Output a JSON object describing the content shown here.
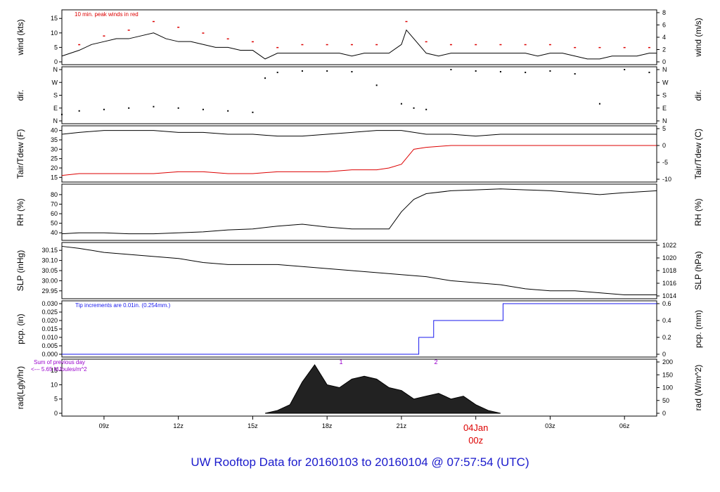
{
  "title": "UW Rooftop Data for 20160103  to  20160104 @ 07:57:54  (UTC)",
  "colors": {
    "black": "#000000",
    "red": "#dd0000",
    "blue": "#1a1aee",
    "purple": "#9900cc"
  },
  "chart_data": [
    {
      "type": "line",
      "panel": "wind",
      "ylabel": "wind (kts)",
      "ylabel_right": "wind (m/s)",
      "ylim": [
        0,
        17
      ],
      "yticks": [
        0,
        5,
        10,
        15
      ],
      "right_ylim": [
        0,
        8.75
      ],
      "right_yticks": [
        0,
        2,
        4,
        6,
        8
      ],
      "annotation": "10 min. peak winds in red",
      "series": [
        {
          "name": "wind",
          "color": "#000000",
          "x": [
            7.3,
            8,
            8.5,
            9,
            9.5,
            10,
            10.5,
            11,
            11.5,
            12,
            12.5,
            13,
            13.5,
            14,
            14.5,
            15,
            15.5,
            16,
            16.5,
            17,
            17.5,
            18,
            18.5,
            19,
            19.5,
            20,
            20.5,
            21,
            21.2,
            21.5,
            22,
            22.5,
            23,
            23.5,
            24,
            24.5,
            25,
            25.5,
            26,
            26.5,
            27,
            27.5,
            28,
            28.5,
            29,
            29.5,
            30,
            30.5,
            31,
            31.3
          ],
          "y": [
            2,
            4,
            6,
            7,
            8,
            8,
            9,
            10,
            8,
            7,
            7,
            6,
            5,
            5,
            4,
            4,
            1,
            3,
            3,
            3,
            3,
            3,
            3,
            2,
            3,
            3,
            3,
            6,
            11,
            8,
            3,
            2,
            3,
            3,
            3,
            3,
            3,
            3,
            3,
            2,
            3,
            3,
            2,
            1,
            1,
            2,
            2,
            2,
            3,
            3
          ]
        },
        {
          "name": "10 min. peak winds in red",
          "color": "#dd0000",
          "x": [
            8,
            9,
            10,
            11,
            12,
            13,
            14,
            15,
            16,
            17,
            18,
            19,
            20,
            21.2,
            22,
            23,
            24,
            25,
            26,
            27,
            28,
            29,
            30,
            31
          ],
          "y": [
            6,
            9,
            11,
            14,
            12,
            10,
            8,
            7,
            5,
            6,
            6,
            6,
            6,
            14,
            7,
            6,
            6,
            6,
            6,
            6,
            5,
            5,
            5,
            5
          ]
        }
      ]
    },
    {
      "type": "scatter",
      "panel": "dir",
      "ylabel": "dir.",
      "ylabel_right": "dir.",
      "yticks": [
        "N",
        "E",
        "S",
        "W",
        "N"
      ],
      "series": [
        {
          "name": "dir",
          "color": "#000000",
          "x": [
            7.3,
            8,
            9,
            10,
            11,
            12,
            13,
            14,
            15,
            15.5,
            16,
            17,
            18,
            19,
            20,
            21,
            21.5,
            22,
            23,
            24,
            25,
            26,
            27,
            28,
            29,
            30,
            31
          ],
          "y": [
            45,
            70,
            80,
            90,
            100,
            90,
            80,
            70,
            60,
            300,
            340,
            350,
            350,
            345,
            250,
            120,
            90,
            80,
            360,
            350,
            345,
            340,
            350,
            330,
            120,
            360,
            340
          ]
        }
      ]
    },
    {
      "type": "line",
      "panel": "temperature",
      "ylabel": "Tair/Tdew (F)",
      "ylabel_right": "Tair/Tdew (C)",
      "ylim": [
        14,
        41
      ],
      "yticks": [
        15,
        20,
        25,
        30,
        35,
        40
      ],
      "right_yticks": [
        -10,
        -5,
        0,
        5
      ],
      "series": [
        {
          "name": "Tair",
          "color": "#000000",
          "x": [
            7.3,
            8,
            9,
            10,
            11,
            12,
            13,
            14,
            15,
            16,
            17,
            18,
            19,
            20,
            20.5,
            21,
            22,
            23,
            24,
            25,
            26,
            27,
            28,
            29,
            30,
            31.3
          ],
          "y": [
            38,
            39,
            40,
            40,
            40,
            39,
            39,
            38,
            38,
            37,
            37,
            38,
            39,
            40,
            40,
            40,
            38,
            38,
            37,
            38,
            38,
            38,
            38,
            38,
            38,
            38
          ]
        },
        {
          "name": "Tdew",
          "color": "#dd0000",
          "x": [
            7.3,
            8,
            9,
            10,
            11,
            12,
            13,
            14,
            15,
            16,
            17,
            18,
            19,
            20,
            20.5,
            21,
            21.5,
            22,
            23,
            24,
            25,
            26,
            27,
            28,
            29,
            30,
            31.3
          ],
          "y": [
            16,
            17,
            17,
            17,
            17,
            18,
            18,
            17,
            17,
            18,
            18,
            18,
            19,
            19,
            20,
            22,
            30,
            31,
            32,
            32,
            32,
            32,
            32,
            32,
            32,
            32,
            32
          ]
        }
      ]
    },
    {
      "type": "line",
      "panel": "rh",
      "ylabel": "RH (%)",
      "ylabel_right": "RH (%)",
      "ylim": [
        35,
        88
      ],
      "yticks": [
        40,
        50,
        60,
        70,
        80
      ],
      "series": [
        {
          "name": "RH",
          "color": "#000000",
          "x": [
            7.3,
            8,
            9,
            10,
            11,
            12,
            13,
            14,
            15,
            16,
            17,
            18,
            19,
            20,
            20.5,
            21,
            21.5,
            22,
            23,
            24,
            25,
            26,
            27,
            28,
            29,
            30,
            31.3
          ],
          "y": [
            39,
            40,
            40,
            39,
            39,
            40,
            41,
            43,
            44,
            47,
            49,
            46,
            44,
            44,
            44,
            62,
            75,
            81,
            84,
            85,
            86,
            85,
            84,
            82,
            80,
            82,
            84
          ]
        }
      ]
    },
    {
      "type": "line",
      "panel": "slp",
      "ylabel": "SLP (inHg)",
      "ylabel_right": "SLP (hPa)",
      "ylim": [
        29.925,
        30.175
      ],
      "yticks": [
        29.95,
        30.0,
        30.05,
        30.1,
        30.15
      ],
      "right_yticks": [
        1014,
        1016,
        1018,
        1020,
        1022
      ],
      "series": [
        {
          "name": "SLP",
          "color": "#000000",
          "x": [
            7.3,
            8,
            9,
            10,
            11,
            12,
            13,
            14,
            15,
            16,
            17,
            18,
            19,
            20,
            21,
            22,
            23,
            24,
            25,
            26,
            27,
            28,
            29,
            30,
            31.3
          ],
          "y": [
            30.17,
            30.16,
            30.14,
            30.13,
            30.12,
            30.11,
            30.09,
            30.08,
            30.08,
            30.08,
            30.07,
            30.06,
            30.05,
            30.04,
            30.03,
            30.02,
            30.0,
            29.99,
            29.98,
            29.96,
            29.95,
            29.95,
            29.94,
            29.93,
            29.93
          ]
        }
      ]
    },
    {
      "type": "line",
      "panel": "pcp",
      "ylabel": "pcp. (in)",
      "ylabel_right": "pcp. (mm)",
      "ylim": [
        0,
        0.03
      ],
      "yticks": [
        0.0,
        0.005,
        0.01,
        0.015,
        0.02,
        0.025,
        0.03
      ],
      "right_yticks": [
        0,
        0.2,
        0.4,
        0.6
      ],
      "annotation": "Tip increments are 0.01in. (0.254mm.)",
      "series": [
        {
          "name": "pcp",
          "color": "#1a1aee",
          "x": [
            7.3,
            21.7,
            21.7,
            22.3,
            22.3,
            25.1,
            25.1,
            31.3
          ],
          "y": [
            0,
            0,
            0.01,
            0.01,
            0.02,
            0.02,
            0.03,
            0.03
          ]
        }
      ]
    },
    {
      "type": "area",
      "panel": "rad",
      "ylabel": "rad(Lgly/hr)",
      "ylabel_right": "rad (W/m^2)",
      "ylim": [
        0,
        18
      ],
      "yticks": [
        0,
        5,
        10,
        15
      ],
      "right_yticks": [
        0,
        50,
        100,
        150,
        200
      ],
      "annotations": [
        "Sum of previous day",
        "<--- 5.65 MJoules/m^2"
      ],
      "markers": [
        "1",
        "2"
      ],
      "series": [
        {
          "name": "rad",
          "color": "#000000",
          "x": [
            15.5,
            16,
            16.5,
            17,
            17.5,
            18,
            18.5,
            19,
            19.5,
            20,
            20.5,
            21,
            21.5,
            22,
            22.5,
            23,
            23.5,
            24,
            24.5,
            25
          ],
          "y": [
            0,
            1,
            3,
            11,
            17,
            10,
            9,
            12,
            13,
            12,
            9,
            8,
            5,
            6,
            7,
            5,
            6,
            3,
            1,
            0
          ]
        }
      ]
    }
  ],
  "xaxis": {
    "xlim": [
      7.3,
      31.3
    ],
    "ticks": [
      {
        "v": 9,
        "label": "09z"
      },
      {
        "v": 12,
        "label": "12z"
      },
      {
        "v": 15,
        "label": "15z"
      },
      {
        "v": 18,
        "label": "18z"
      },
      {
        "v": 21,
        "label": "21z"
      },
      {
        "v": 27,
        "label": "03z"
      },
      {
        "v": 30,
        "label": "06z"
      }
    ],
    "day_label": {
      "v": 24,
      "line1": "04Jan",
      "line2": "00z"
    }
  }
}
